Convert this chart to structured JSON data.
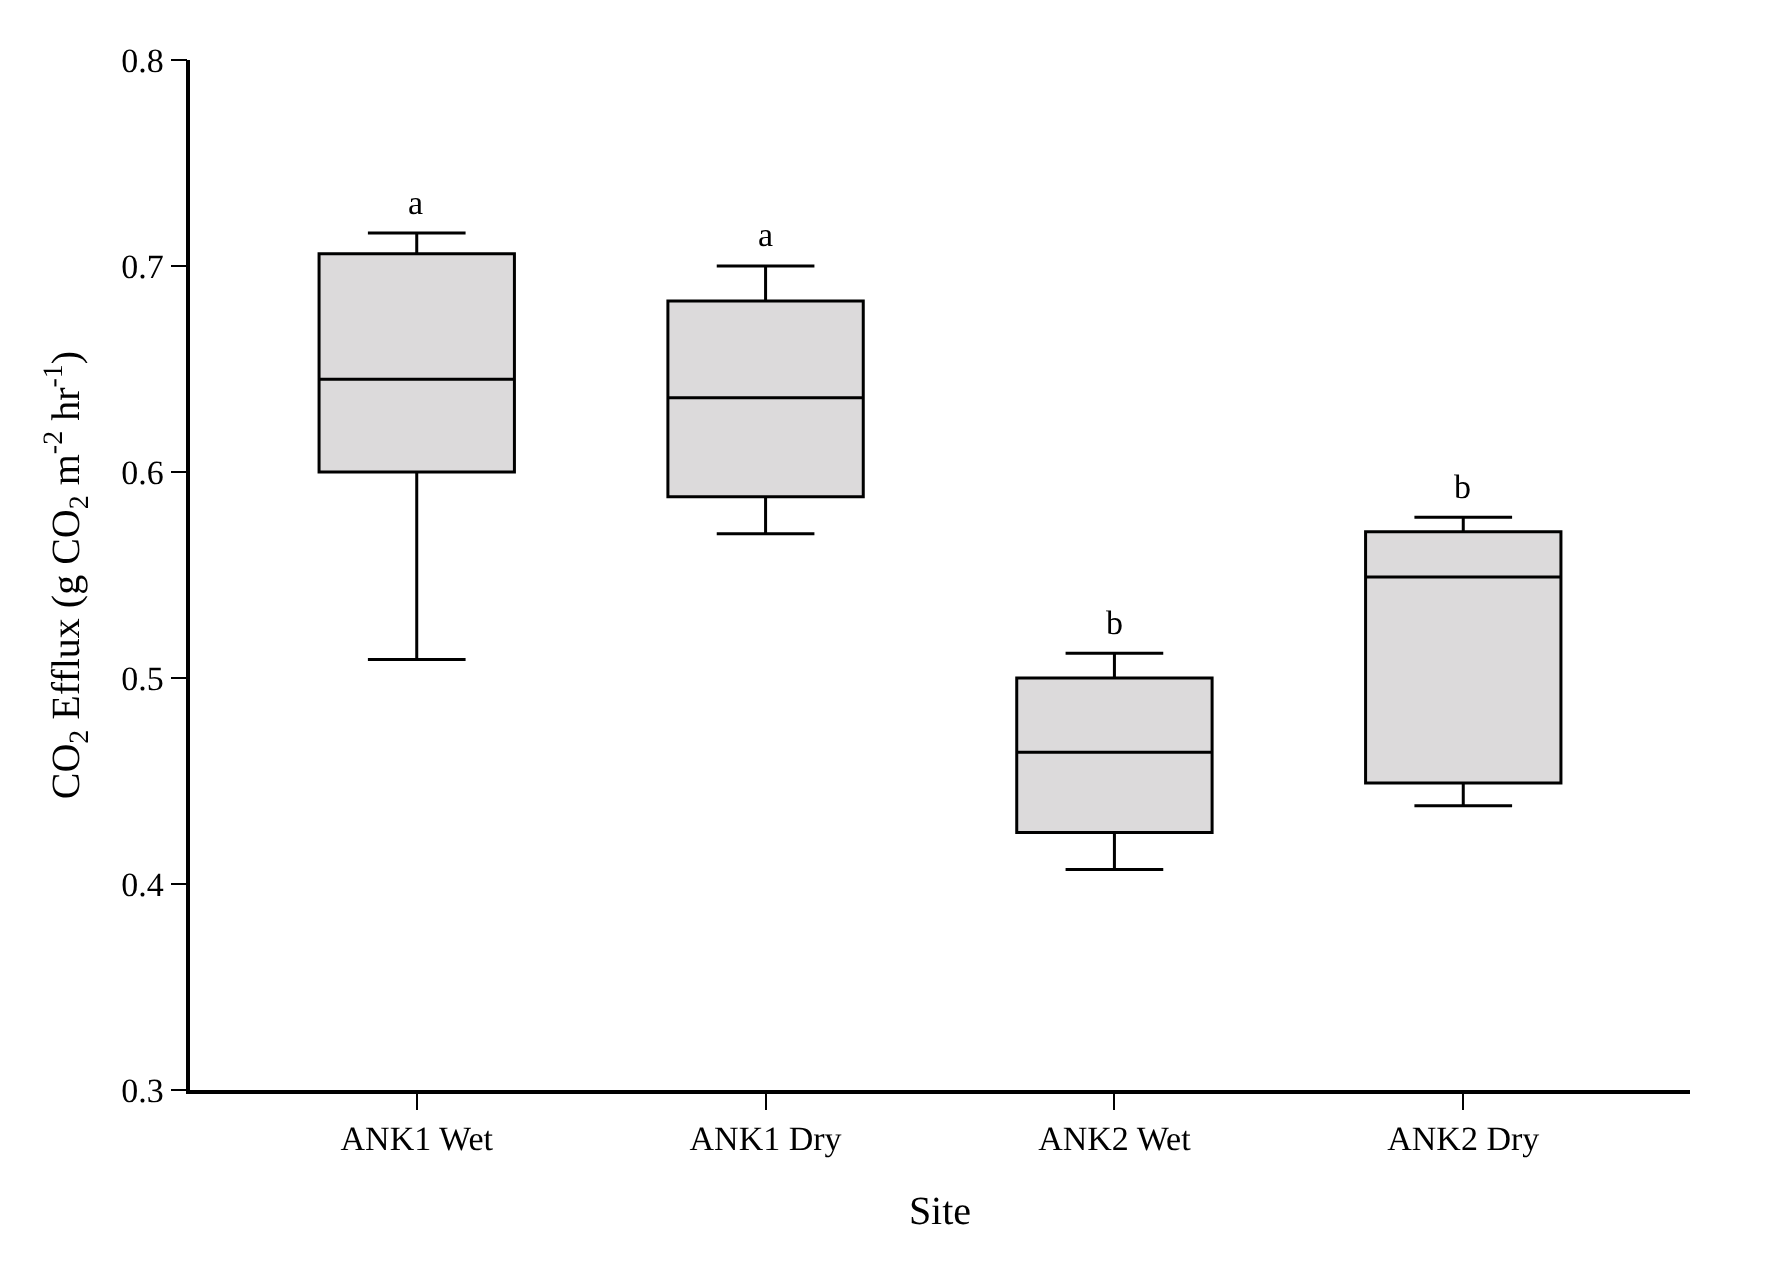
{
  "chart_data": {
    "type": "box",
    "xlabel": "Site",
    "ylabel": "CO$_{2}$ Efflux (g CO$_{2}$ m$^{-2}$ hr$^{-1}$)",
    "categories": [
      "ANK1 Wet",
      "ANK1 Dry",
      "ANK2 Wet",
      "ANK2 Dry"
    ],
    "color": "#dcdadb",
    "boxes": [
      {
        "low": 0.509,
        "q1": 0.6,
        "median": 0.645,
        "q3": 0.706,
        "high": 0.716
      },
      {
        "low": 0.57,
        "q1": 0.588,
        "median": 0.636,
        "q3": 0.683,
        "high": 0.7
      },
      {
        "low": 0.407,
        "q1": 0.425,
        "median": 0.464,
        "q3": 0.5,
        "high": 0.512
      },
      {
        "low": 0.438,
        "q1": 0.449,
        "median": 0.549,
        "q3": 0.571,
        "high": 0.578
      }
    ],
    "ylim": [
      0.3,
      0.8
    ],
    "yticks": [
      0.3,
      0.4,
      0.5,
      0.6,
      0.7,
      0.8
    ],
    "legend": false,
    "annotations": [
      {
        "text": "a",
        "x": "ANK1 Wet",
        "y": 0.716
      },
      {
        "text": "a",
        "x": "ANK1 Dry",
        "y": 0.7
      },
      {
        "text": "b",
        "x": "ANK2 Wet",
        "y": 0.512
      },
      {
        "text": "b",
        "x": "ANK2 Dry",
        "y": 0.578
      }
    ]
  }
}
